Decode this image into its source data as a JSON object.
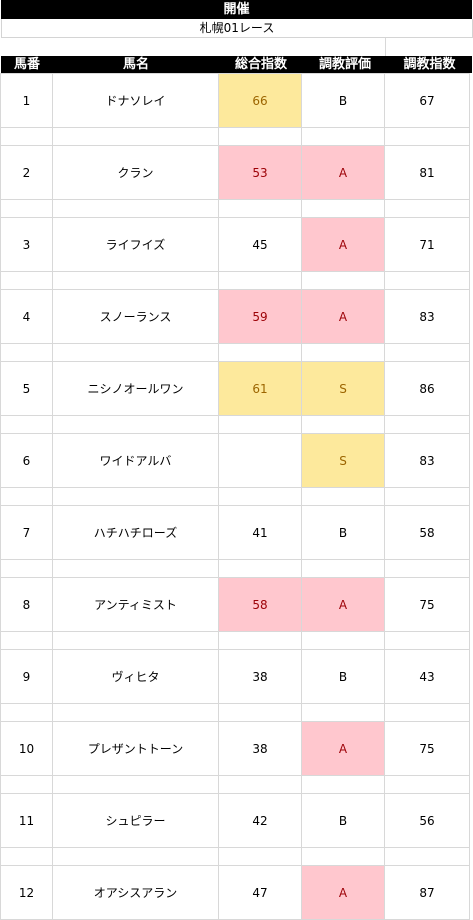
{
  "title": "開催",
  "race": "札幌01レース",
  "headers": [
    "馬番",
    "馬名",
    "総合指数",
    "調教評価",
    "調教指数"
  ],
  "rows": [
    {
      "no": "1",
      "name": "ドナソレイ",
      "total": "66",
      "eval": "B",
      "train": "67",
      "total_hl": "yel",
      "eval_hl": ""
    },
    {
      "no": "2",
      "name": "クラン",
      "total": "53",
      "eval": "A",
      "train": "81",
      "total_hl": "pink",
      "eval_hl": "pink"
    },
    {
      "no": "3",
      "name": "ライフイズ",
      "total": "45",
      "eval": "A",
      "train": "71",
      "total_hl": "",
      "eval_hl": "pink"
    },
    {
      "no": "4",
      "name": "スノーランス",
      "total": "59",
      "eval": "A",
      "train": "83",
      "total_hl": "pink",
      "eval_hl": "pink"
    },
    {
      "no": "5",
      "name": "ニシノオールワン",
      "total": "61",
      "eval": "S",
      "train": "86",
      "total_hl": "yel",
      "eval_hl": "yel"
    },
    {
      "no": "6",
      "name": "ワイドアルバ",
      "total": "",
      "eval": "S",
      "train": "83",
      "total_hl": "",
      "eval_hl": "yel"
    },
    {
      "no": "7",
      "name": "ハチハチローズ",
      "total": "41",
      "eval": "B",
      "train": "58",
      "total_hl": "",
      "eval_hl": ""
    },
    {
      "no": "8",
      "name": "アンティミスト",
      "total": "58",
      "eval": "A",
      "train": "75",
      "total_hl": "pink",
      "eval_hl": "pink"
    },
    {
      "no": "9",
      "name": "ヴィヒタ",
      "total": "38",
      "eval": "B",
      "train": "43",
      "total_hl": "",
      "eval_hl": ""
    },
    {
      "no": "10",
      "name": "プレザントトーン",
      "total": "38",
      "eval": "A",
      "train": "75",
      "total_hl": "",
      "eval_hl": "pink"
    },
    {
      "no": "11",
      "name": "シュピラー",
      "total": "42",
      "eval": "B",
      "train": "56",
      "total_hl": "",
      "eval_hl": ""
    },
    {
      "no": "12",
      "name": "オアシスアラン",
      "total": "47",
      "eval": "A",
      "train": "87",
      "total_hl": "",
      "eval_hl": "pink"
    }
  ],
  "colors": {
    "yellow_fill": "#fde99c",
    "yellow_text": "#9c6500",
    "pink_fill": "#ffc7ce",
    "pink_text": "#9c0006",
    "header_bg": "#000000"
  }
}
